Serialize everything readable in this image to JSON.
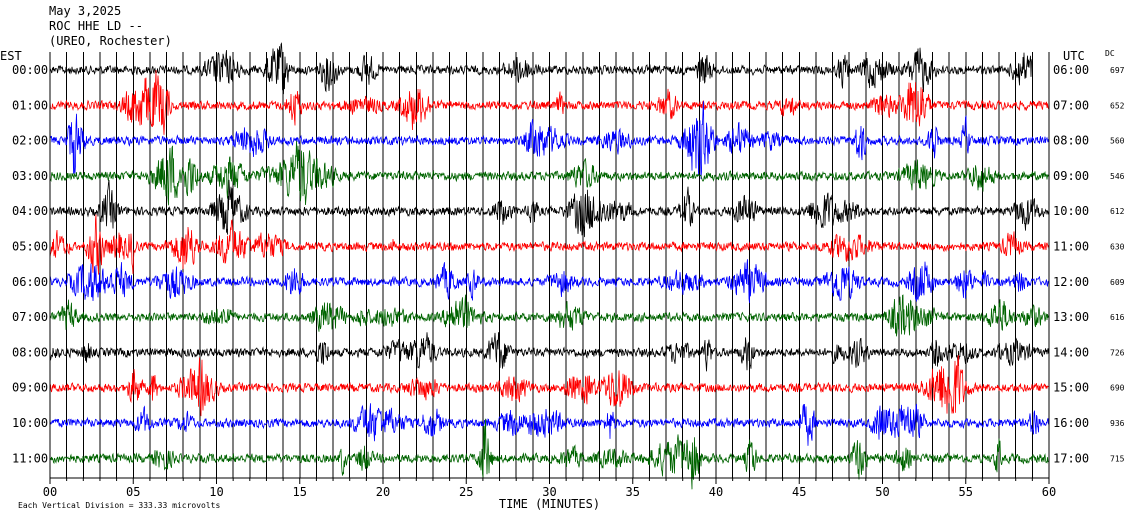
{
  "header": {
    "date": "May 3,2025",
    "station": "ROC HHE LD --",
    "network": "(UREO, Rochester)"
  },
  "left_axis_label": "EST",
  "right_axis_label": "UTC",
  "dc_label": "DC",
  "footer": {
    "scale_note": "Each Vertical Division = 333.33 microvolts"
  },
  "colors": {
    "black": "#000000",
    "red": "#ff0000",
    "blue": "#0000ff",
    "green": "#006400"
  },
  "chart_data": {
    "type": "line",
    "title": "",
    "xlabel": "TIME (MINUTES)",
    "ylabel": "",
    "xlim": [
      0,
      60
    ],
    "x_ticks": [
      "00",
      "05",
      "10",
      "15",
      "20",
      "25",
      "30",
      "35",
      "40",
      "45",
      "50",
      "55",
      "60"
    ],
    "traces": [
      {
        "est": "00:00",
        "utc": "06:00",
        "dc": "697",
        "color": "black",
        "end_minute": 59
      },
      {
        "est": "01:00",
        "utc": "07:00",
        "dc": "652",
        "color": "red",
        "end_minute": 60
      },
      {
        "est": "02:00",
        "utc": "08:00",
        "dc": "560",
        "color": "blue",
        "end_minute": 60
      },
      {
        "est": "03:00",
        "utc": "09:00",
        "dc": "546",
        "color": "green",
        "end_minute": 60
      },
      {
        "est": "04:00",
        "utc": "10:00",
        "dc": "612",
        "color": "black",
        "end_minute": 60
      },
      {
        "est": "05:00",
        "utc": "11:00",
        "dc": "630",
        "color": "red",
        "end_minute": 60
      },
      {
        "est": "06:00",
        "utc": "12:00",
        "dc": "609",
        "color": "blue",
        "end_minute": 60
      },
      {
        "est": "07:00",
        "utc": "13:00",
        "dc": "616",
        "color": "green",
        "end_minute": 60
      },
      {
        "est": "08:00",
        "utc": "14:00",
        "dc": "726",
        "color": "black",
        "end_minute": 60
      },
      {
        "est": "09:00",
        "utc": "15:00",
        "dc": "690",
        "color": "red",
        "end_minute": 60
      },
      {
        "est": "10:00",
        "utc": "16:00",
        "dc": "936",
        "color": "blue",
        "end_minute": 60
      },
      {
        "est": "11:00",
        "utc": "17:00",
        "dc": "715",
        "color": "green",
        "end_minute": 60
      }
    ]
  }
}
